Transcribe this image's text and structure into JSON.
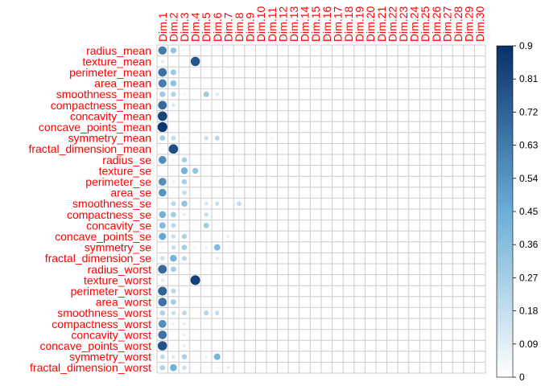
{
  "chart_data": {
    "type": "heatmap",
    "title": "",
    "label_color": "#ff0000",
    "grid_color": "#cccccc",
    "rows": [
      "radius_mean",
      "texture_mean",
      "perimeter_mean",
      "area_mean",
      "smoothness_mean",
      "compactness_mean",
      "concavity_mean",
      "concave_points_mean",
      "symmetry_mean",
      "fractal_dimension_mean",
      "radius_se",
      "texture_se",
      "perimeter_se",
      "area_se",
      "smoothness_se",
      "compactness_se",
      "concavity_se",
      "concave_points_se",
      "symmetry_se",
      "fractal_dimension_se",
      "radius_worst",
      "texture_worst",
      "perimeter_worst",
      "area_worst",
      "smoothness_worst",
      "compactness_worst",
      "concavity_worst",
      "concave_points_worst",
      "symmetry_worst",
      "fractal_dimension_worst"
    ],
    "columns": [
      "Dim.1",
      "Dim.2",
      "Dim.3",
      "Dim.4",
      "Dim.5",
      "Dim.6",
      "Dim.7",
      "Dim.8",
      "Dim.9",
      "Dim.10",
      "Dim.11",
      "Dim.12",
      "Dim.13",
      "Dim.14",
      "Dim.15",
      "Dim.16",
      "Dim.17",
      "Dim.18",
      "Dim.19",
      "Dim.20",
      "Dim.21",
      "Dim.22",
      "Dim.23",
      "Dim.24",
      "Dim.25",
      "Dim.26",
      "Dim.27",
      "Dim.28",
      "Dim.29",
      "Dim.30"
    ],
    "values": [
      [
        0.63,
        0.32,
        0.05,
        0.01,
        0.01,
        0.01,
        0,
        0,
        0,
        0,
        0,
        0,
        0,
        0,
        0,
        0,
        0,
        0,
        0,
        0,
        0,
        0,
        0,
        0,
        0,
        0,
        0,
        0,
        0,
        0
      ],
      [
        0.1,
        0.03,
        0.04,
        0.77,
        0.02,
        0.01,
        0,
        0,
        0,
        0,
        0,
        0,
        0,
        0,
        0,
        0,
        0,
        0,
        0,
        0,
        0,
        0,
        0,
        0,
        0,
        0,
        0,
        0,
        0,
        0
      ],
      [
        0.67,
        0.3,
        0.05,
        0.01,
        0.01,
        0.01,
        0,
        0,
        0,
        0,
        0,
        0,
        0,
        0,
        0,
        0,
        0,
        0,
        0,
        0,
        0,
        0,
        0,
        0,
        0,
        0,
        0,
        0,
        0,
        0
      ],
      [
        0.62,
        0.34,
        0.04,
        0.01,
        0.01,
        0.01,
        0,
        0,
        0,
        0,
        0,
        0,
        0,
        0,
        0,
        0,
        0,
        0,
        0,
        0,
        0,
        0,
        0,
        0,
        0,
        0,
        0,
        0,
        0,
        0
      ],
      [
        0.3,
        0.24,
        0.06,
        0.02,
        0.29,
        0.11,
        0,
        0,
        0,
        0,
        0,
        0,
        0,
        0,
        0,
        0,
        0,
        0,
        0,
        0,
        0,
        0,
        0,
        0,
        0,
        0,
        0,
        0,
        0,
        0
      ],
      [
        0.69,
        0.12,
        0.01,
        0.01,
        0.02,
        0.04,
        0,
        0,
        0,
        0,
        0,
        0,
        0,
        0,
        0,
        0,
        0,
        0,
        0,
        0,
        0,
        0,
        0,
        0,
        0,
        0,
        0,
        0,
        0,
        0
      ],
      [
        0.82,
        0.02,
        0.01,
        0.01,
        0.01,
        0.01,
        0,
        0,
        0,
        0,
        0,
        0,
        0,
        0,
        0,
        0,
        0,
        0,
        0,
        0,
        0,
        0,
        0,
        0,
        0,
        0,
        0,
        0,
        0,
        0
      ],
      [
        0.88,
        0.02,
        0.01,
        0.01,
        0.01,
        0.01,
        0,
        0,
        0,
        0,
        0,
        0,
        0,
        0,
        0,
        0,
        0,
        0,
        0,
        0,
        0,
        0,
        0,
        0,
        0,
        0,
        0,
        0,
        0,
        0
      ],
      [
        0.28,
        0.2,
        0.05,
        0.02,
        0.18,
        0.21,
        0,
        0,
        0,
        0,
        0.06,
        0,
        0,
        0,
        0,
        0,
        0,
        0,
        0,
        0,
        0,
        0,
        0,
        0,
        0,
        0,
        0,
        0,
        0,
        0
      ],
      [
        0.05,
        0.8,
        0.02,
        0.01,
        0.01,
        0.01,
        0.02,
        0,
        0,
        0,
        0,
        0,
        0,
        0,
        0,
        0,
        0,
        0,
        0,
        0,
        0,
        0,
        0,
        0,
        0,
        0,
        0,
        0,
        0,
        0
      ],
      [
        0.56,
        0.06,
        0.26,
        0.01,
        0.01,
        0.01,
        0.04,
        0,
        0,
        0,
        0,
        0,
        0,
        0,
        0,
        0,
        0,
        0,
        0,
        0,
        0,
        0,
        0,
        0,
        0,
        0,
        0,
        0,
        0,
        0
      ],
      [
        0.01,
        0.05,
        0.42,
        0.32,
        0.02,
        0.01,
        0.03,
        0.08,
        0,
        0,
        0,
        0,
        0,
        0,
        0,
        0,
        0,
        0,
        0,
        0,
        0,
        0,
        0,
        0,
        0,
        0,
        0,
        0,
        0,
        0
      ],
      [
        0.56,
        0.08,
        0.26,
        0.01,
        0.01,
        0.01,
        0.04,
        0,
        0,
        0,
        0,
        0,
        0,
        0,
        0,
        0,
        0,
        0,
        0,
        0,
        0,
        0,
        0,
        0,
        0,
        0,
        0,
        0,
        0,
        0
      ],
      [
        0.54,
        0.05,
        0.19,
        0.01,
        0.01,
        0.01,
        0.05,
        0,
        0,
        0,
        0,
        0,
        0,
        0,
        0,
        0,
        0,
        0,
        0,
        0,
        0,
        0,
        0,
        0,
        0,
        0,
        0,
        0,
        0,
        0
      ],
      [
        0.02,
        0.21,
        0.33,
        0.03,
        0.14,
        0.17,
        0.02,
        0.19,
        0,
        0,
        0,
        0,
        0,
        0,
        0,
        0,
        0,
        0,
        0,
        0,
        0,
        0,
        0,
        0,
        0,
        0,
        0,
        0,
        0,
        0
      ],
      [
        0.43,
        0.28,
        0.1,
        0.01,
        0.17,
        0.02,
        0,
        0,
        0,
        0,
        0,
        0,
        0,
        0,
        0,
        0,
        0,
        0,
        0,
        0,
        0,
        0,
        0,
        0,
        0,
        0,
        0,
        0,
        0,
        0
      ],
      [
        0.37,
        0.21,
        0.05,
        0.01,
        0.28,
        0.02,
        0,
        0,
        0,
        0,
        0,
        0,
        0,
        0,
        0,
        0,
        0,
        0,
        0,
        0,
        0,
        0,
        0,
        0,
        0,
        0,
        0,
        0,
        0,
        0
      ],
      [
        0.47,
        0.18,
        0.25,
        0.01,
        0.02,
        0.04,
        0.09,
        0,
        0,
        0,
        0,
        0,
        0,
        0,
        0,
        0,
        0,
        0,
        0,
        0,
        0,
        0,
        0,
        0,
        0,
        0,
        0,
        0,
        0,
        0
      ],
      [
        0.05,
        0.18,
        0.27,
        0.05,
        0.08,
        0.37,
        0.04,
        0,
        0,
        0,
        0,
        0,
        0,
        0,
        0,
        0,
        0,
        0,
        0,
        0,
        0,
        0,
        0,
        0,
        0,
        0,
        0,
        0,
        0,
        0
      ],
      [
        0.17,
        0.42,
        0.21,
        0.01,
        0.03,
        0.1,
        0.03,
        0,
        0,
        0,
        0,
        0,
        0,
        0,
        0,
        0,
        0,
        0,
        0,
        0,
        0,
        0,
        0,
        0,
        0,
        0,
        0,
        0,
        0,
        0
      ],
      [
        0.69,
        0.27,
        0.02,
        0.01,
        0.01,
        0.01,
        0,
        0,
        0,
        0,
        0,
        0,
        0,
        0,
        0,
        0,
        0,
        0,
        0,
        0,
        0,
        0,
        0,
        0,
        0,
        0,
        0,
        0,
        0,
        0
      ],
      [
        0.11,
        0.03,
        0.04,
        0.85,
        0.02,
        0.01,
        0,
        0,
        0,
        0,
        0,
        0,
        0,
        0,
        0,
        0,
        0,
        0,
        0,
        0,
        0,
        0,
        0,
        0,
        0,
        0,
        0,
        0,
        0,
        0
      ],
      [
        0.72,
        0.22,
        0.01,
        0.01,
        0.01,
        0.01,
        0,
        0,
        0,
        0,
        0,
        0,
        0,
        0,
        0,
        0,
        0,
        0,
        0,
        0,
        0,
        0,
        0,
        0,
        0,
        0,
        0,
        0,
        0,
        0
      ],
      [
        0.66,
        0.28,
        0.02,
        0.01,
        0.01,
        0.01,
        0,
        0,
        0,
        0,
        0,
        0,
        0,
        0,
        0,
        0,
        0,
        0,
        0,
        0,
        0,
        0,
        0,
        0,
        0,
        0,
        0,
        0,
        0,
        0
      ],
      [
        0.25,
        0.17,
        0.2,
        0.02,
        0.22,
        0.18,
        0,
        0,
        0,
        0,
        0,
        0,
        0,
        0,
        0,
        0,
        0,
        0,
        0,
        0,
        0,
        0,
        0,
        0,
        0,
        0,
        0,
        0,
        0,
        0
      ],
      [
        0.56,
        0.08,
        0.1,
        0.01,
        0.02,
        0.01,
        0,
        0,
        0,
        0,
        0,
        0,
        0,
        0,
        0,
        0,
        0,
        0,
        0,
        0,
        0,
        0,
        0,
        0,
        0,
        0,
        0,
        0,
        0,
        0
      ],
      [
        0.66,
        0.03,
        0.08,
        0.01,
        0.01,
        0.01,
        0,
        0,
        0,
        0,
        0,
        0,
        0,
        0,
        0,
        0,
        0,
        0,
        0,
        0,
        0,
        0,
        0,
        0,
        0,
        0,
        0,
        0,
        0,
        0
      ],
      [
        0.78,
        0.05,
        0.08,
        0.01,
        0.01,
        0.01,
        0,
        0,
        0,
        0,
        0,
        0,
        0,
        0,
        0,
        0,
        0,
        0,
        0,
        0,
        0,
        0,
        0,
        0,
        0,
        0,
        0,
        0,
        0,
        0
      ],
      [
        0.21,
        0.12,
        0.25,
        0.04,
        0.08,
        0.4,
        0.02,
        0,
        0,
        0,
        0,
        0,
        0,
        0,
        0,
        0,
        0,
        0,
        0,
        0,
        0,
        0,
        0,
        0,
        0,
        0,
        0,
        0,
        0,
        0
      ],
      [
        0.25,
        0.43,
        0.17,
        0.02,
        0.03,
        0.05,
        0.1,
        0,
        0,
        0,
        0,
        0,
        0,
        0,
        0,
        0,
        0,
        0,
        0,
        0,
        0,
        0,
        0,
        0,
        0,
        0,
        0,
        0,
        0,
        0
      ]
    ],
    "colorbar": {
      "range": [
        0,
        0.9
      ],
      "ticks": [
        "0",
        "0.09",
        "0.18",
        "0.27",
        "0.36",
        "0.45",
        "0.54",
        "0.63",
        "0.72",
        "0.81",
        "0.9"
      ],
      "color_low": "#ffffff",
      "color_mid": "#6baed6",
      "color_high": "#08306b"
    },
    "legend_placement": "right",
    "grid": true
  }
}
